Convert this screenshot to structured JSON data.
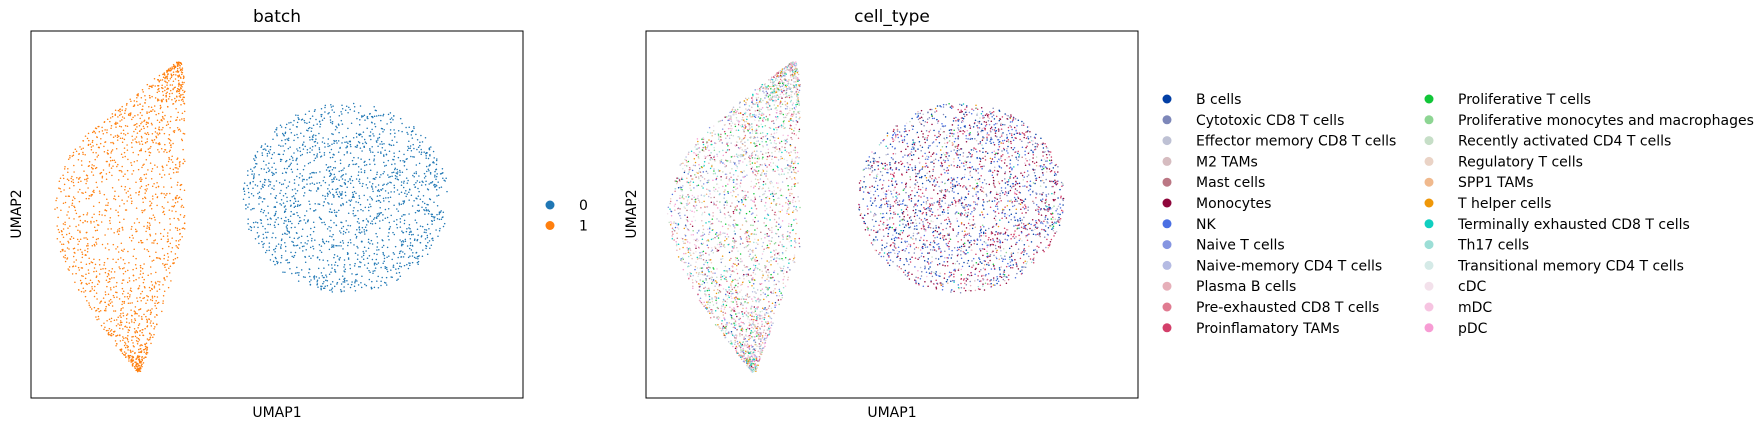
{
  "chart_data": [
    {
      "type": "scatter",
      "title": "batch",
      "xlabel": "UMAP1",
      "ylabel": "UMAP2",
      "grid": false,
      "legend_position": "right",
      "series": [
        {
          "name": "0",
          "color": "#1f77b4",
          "cluster": "right"
        },
        {
          "name": "1",
          "color": "#ff7f0e",
          "cluster": "left"
        }
      ]
    },
    {
      "type": "scatter",
      "title": "cell_type",
      "xlabel": "UMAP1",
      "ylabel": "UMAP2",
      "grid": false,
      "legend_position": "right",
      "series": [
        {
          "name": "B cells",
          "color": "#023fa5"
        },
        {
          "name": "Cytotoxic CD8 T cells",
          "color": "#7d87b9"
        },
        {
          "name": "Effector memory CD8 T cells",
          "color": "#bec1d4"
        },
        {
          "name": "M2 TAMs",
          "color": "#d6bcc0"
        },
        {
          "name": "Mast cells",
          "color": "#bb7784"
        },
        {
          "name": "Monocytes",
          "color": "#8e063b"
        },
        {
          "name": "NK",
          "color": "#4a6fe3"
        },
        {
          "name": "Naive T cells",
          "color": "#8595e1"
        },
        {
          "name": "Naive-memory CD4 T cells",
          "color": "#b5bbe3"
        },
        {
          "name": "Plasma B cells",
          "color": "#e6afb9"
        },
        {
          "name": "Pre-exhausted CD8 T cells",
          "color": "#e07b91"
        },
        {
          "name": "Proinflamatory TAMs",
          "color": "#d33f6a"
        },
        {
          "name": "Proliferative T cells",
          "color": "#11c638"
        },
        {
          "name": "Proliferative monocytes and macrophages",
          "color": "#8dd593"
        },
        {
          "name": "Recently activated CD4 T cells",
          "color": "#c6dec7"
        },
        {
          "name": "Regulatory T cells",
          "color": "#ead3c6"
        },
        {
          "name": "SPP1 TAMs",
          "color": "#f0b98d"
        },
        {
          "name": "T helper cells",
          "color": "#ef9708"
        },
        {
          "name": "Terminally exhausted CD8 T cells",
          "color": "#0fcfc0"
        },
        {
          "name": "Th17 cells",
          "color": "#9cded6"
        },
        {
          "name": "Transitional memory CD4 T cells",
          "color": "#d5eae7"
        },
        {
          "name": "cDC",
          "color": "#f3e1eb"
        },
        {
          "name": "mDC",
          "color": "#f6c4e1"
        },
        {
          "name": "pDC",
          "color": "#f79cd4"
        }
      ]
    }
  ]
}
